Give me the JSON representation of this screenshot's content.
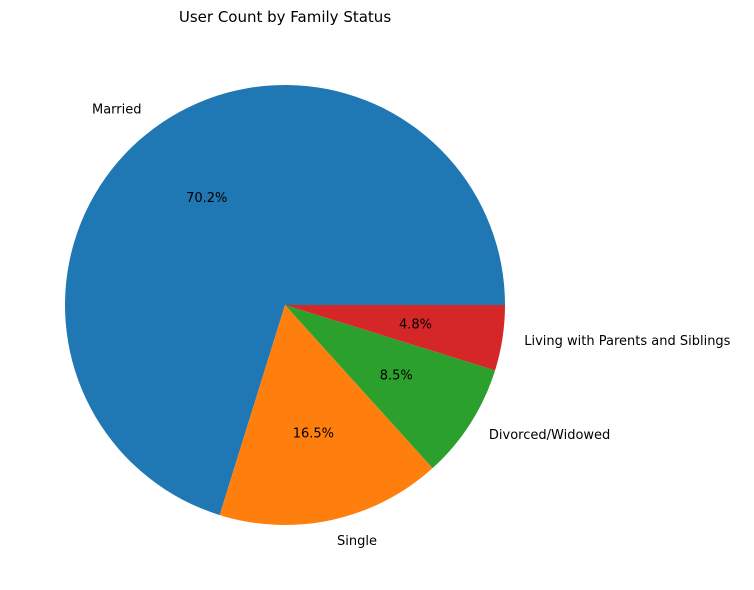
{
  "chart_data": {
    "type": "pie",
    "title": "User Count by Family Status",
    "start_angle": 0,
    "direction": "counterclockwise",
    "slices": [
      {
        "label": "Married",
        "percent": 70.2,
        "percent_label": "70.2%",
        "color": "#1f77b4"
      },
      {
        "label": "Single",
        "percent": 16.5,
        "percent_label": "16.5%",
        "color": "#ff7f0e"
      },
      {
        "label": "Divorced/Widowed",
        "percent": 8.5,
        "percent_label": "8.5%",
        "color": "#2ca02c"
      },
      {
        "label": "Living with Parents and Siblings",
        "percent": 4.8,
        "percent_label": "4.8%",
        "color": "#d62728"
      }
    ]
  }
}
